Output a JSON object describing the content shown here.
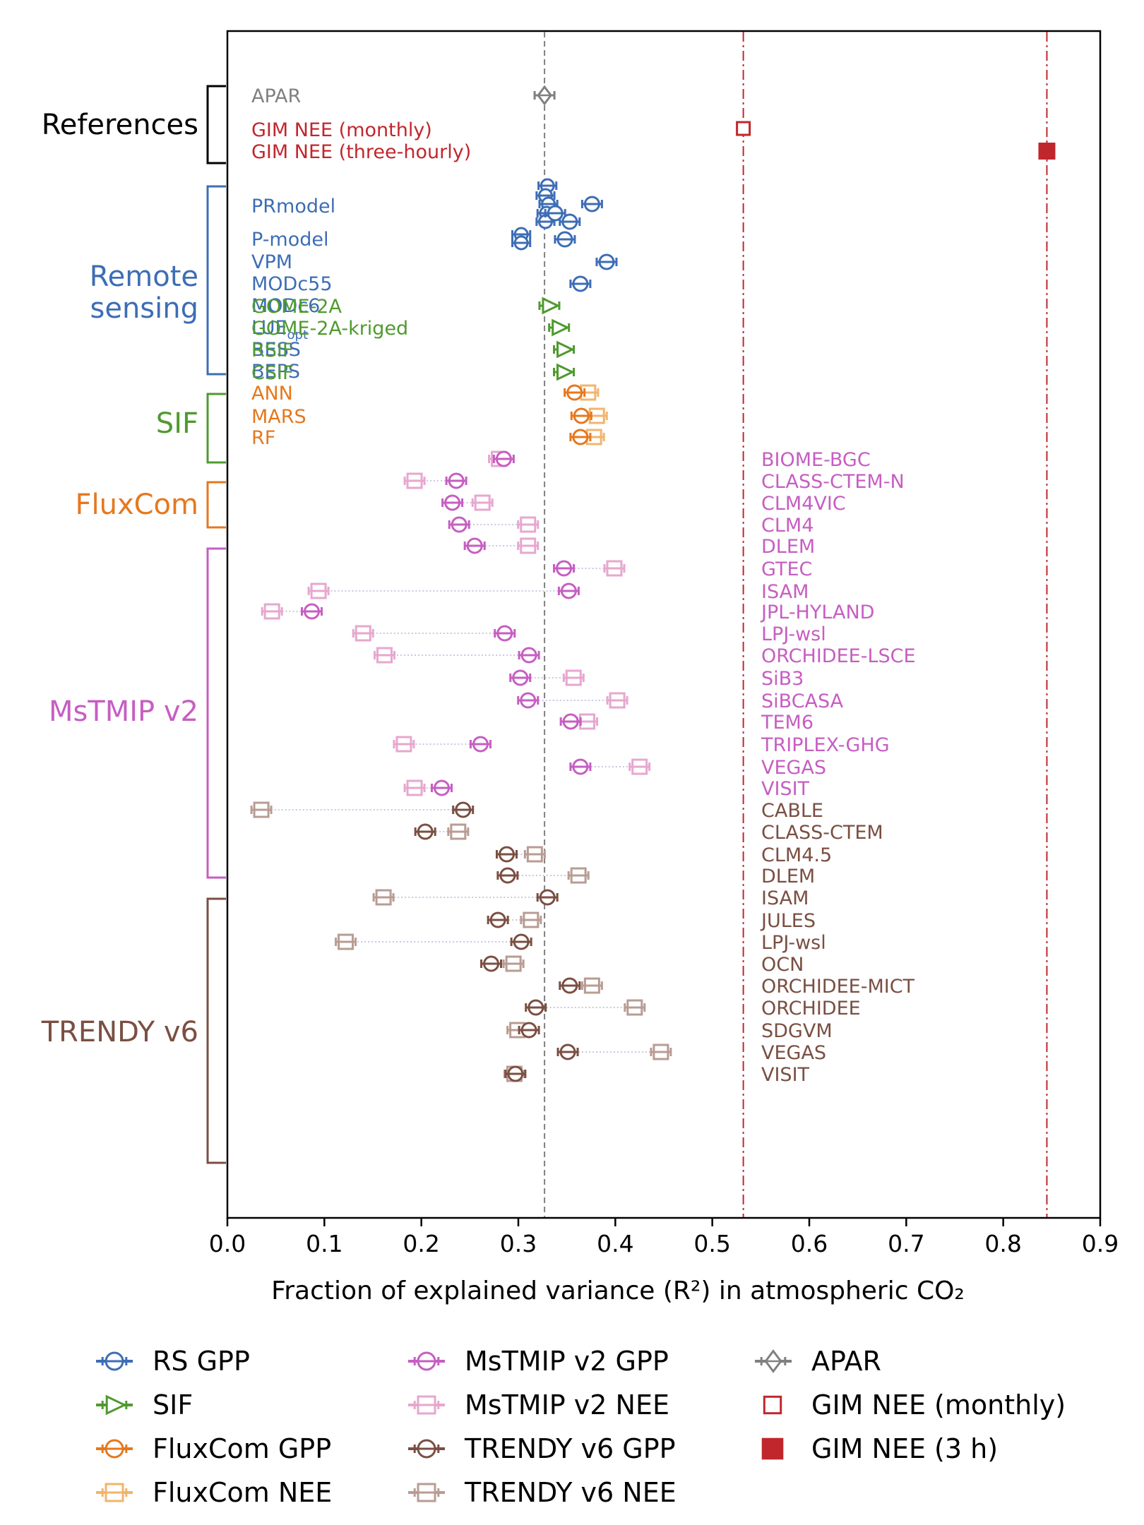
{
  "chart_data": {
    "type": "scatter",
    "xlabel": "Fraction of explained variance (R²) in atmospheric CO₂",
    "xlim": [
      0,
      0.9
    ],
    "xticks": [
      "0.0",
      "0.1",
      "0.2",
      "0.3",
      "0.4",
      "0.5",
      "0.6",
      "0.7",
      "0.8",
      "0.9"
    ],
    "colors": {
      "rs": "#3d6db5",
      "sif": "#4f9a2f",
      "fluxcom_gpp": "#e5781e",
      "fluxcom_nee": "#f2b46d",
      "mstmip_gpp": "#c65ec2",
      "mstmip_nee": "#e7a7cf",
      "trendy_gpp": "#7a4f42",
      "trendy_nee": "#b89c93",
      "apar": "#808080",
      "gim": "#c0272d",
      "ref": "#000000"
    },
    "groups": [
      {
        "label_lines": [
          "References"
        ],
        "color_key": "ref"
      },
      {
        "label_lines": [
          "Remote",
          "sensing"
        ],
        "color_key": "rs"
      },
      {
        "label_lines": [
          "SIF"
        ],
        "color_key": "sif"
      },
      {
        "label_lines": [
          "FluxCom"
        ],
        "color_key": "fluxcom_gpp"
      },
      {
        "label_lines": [
          "MsTMIP v2"
        ],
        "color_key": "mstmip_gpp"
      },
      {
        "label_lines": [
          "TRENDY v6"
        ],
        "color_key": "trendy_gpp"
      }
    ],
    "reference_lines": [
      {
        "x": 0.327,
        "style": "gray-dashed"
      },
      {
        "x": 0.532,
        "style": "red-dashdot"
      },
      {
        "x": 0.845,
        "style": "red-dashdot"
      }
    ],
    "rows": [
      {
        "label": "APAR",
        "side": "left",
        "color_key": "apar",
        "marker": "diamond",
        "x": 0.327
      },
      {
        "label": "GIM NEE (monthly)",
        "side": "left",
        "color_key": "gim",
        "marker": "open-square",
        "x": 0.532
      },
      {
        "label": "GIM NEE (three-hourly)",
        "side": "left",
        "color_key": "gim",
        "marker": "filled-square",
        "x": 0.845
      },
      {
        "label": "PRmodel",
        "side": "left",
        "color_key": "rs",
        "marker": "circle",
        "x": 0.33,
        "extra_points": [
          0.33,
          0.328,
          0.331,
          0.329,
          0.328
        ]
      },
      {
        "label": "P-model",
        "side": "left",
        "color_key": "rs",
        "marker": "circle",
        "x": 0.303,
        "extra_points": [
          0.303
        ]
      },
      {
        "label": "VPM",
        "side": "left",
        "color_key": "rs",
        "marker": "circle",
        "x": 0.376
      },
      {
        "label": "MODc55",
        "side": "left",
        "color_key": "rs",
        "marker": "circle",
        "x": 0.338
      },
      {
        "label": "MODc6",
        "side": "left",
        "color_key": "rs",
        "marker": "circle",
        "x": 0.353
      },
      {
        "label": "LUE",
        "label_sub": "opt",
        "side": "left",
        "color_key": "rs",
        "marker": "circle",
        "x": 0.348
      },
      {
        "label": "BESS",
        "side": "left",
        "color_key": "rs",
        "marker": "circle",
        "x": 0.391
      },
      {
        "label": "BEPS",
        "side": "left",
        "color_key": "rs",
        "marker": "circle",
        "x": 0.364
      },
      {
        "label": "GOME-2A",
        "side": "left",
        "color_key": "sif",
        "marker": "triangle",
        "x": 0.332
      },
      {
        "label": "GOME-2A-kriged",
        "side": "left",
        "color_key": "sif",
        "marker": "triangle",
        "x": 0.342
      },
      {
        "label": "RSIF",
        "side": "left",
        "color_key": "sif",
        "marker": "triangle",
        "x": 0.347
      },
      {
        "label": "CSIF",
        "side": "left",
        "color_key": "sif",
        "marker": "triangle",
        "x": 0.347
      },
      {
        "label": "ANN",
        "side": "left",
        "color_key": "fluxcom_gpp",
        "marker": "circle",
        "x": 0.358,
        "nee": 0.372,
        "nee_color_key": "fluxcom_nee"
      },
      {
        "label": "MARS",
        "side": "left",
        "color_key": "fluxcom_gpp",
        "marker": "circle",
        "x": 0.365,
        "nee": 0.381,
        "nee_color_key": "fluxcom_nee"
      },
      {
        "label": "RF",
        "side": "left",
        "color_key": "fluxcom_gpp",
        "marker": "circle",
        "x": 0.364,
        "nee": 0.378,
        "nee_color_key": "fluxcom_nee"
      },
      {
        "label": "BIOME-BGC",
        "side": "right",
        "color_key": "mstmip_gpp",
        "marker": "circle",
        "x": 0.285,
        "nee": 0.28,
        "nee_color_key": "mstmip_nee"
      },
      {
        "label": "CLASS-CTEM-N",
        "side": "right",
        "color_key": "mstmip_gpp",
        "marker": "circle",
        "x": 0.236,
        "nee": 0.193,
        "nee_color_key": "mstmip_nee"
      },
      {
        "label": "CLM4VIC",
        "side": "right",
        "color_key": "mstmip_gpp",
        "marker": "circle",
        "x": 0.232,
        "nee": 0.263,
        "nee_color_key": "mstmip_nee"
      },
      {
        "label": "CLM4",
        "side": "right",
        "color_key": "mstmip_gpp",
        "marker": "circle",
        "x": 0.239,
        "nee": 0.31,
        "nee_color_key": "mstmip_nee"
      },
      {
        "label": "DLEM",
        "side": "right",
        "color_key": "mstmip_gpp",
        "marker": "circle",
        "x": 0.255,
        "nee": 0.31,
        "nee_color_key": "mstmip_nee"
      },
      {
        "label": "GTEC",
        "side": "right",
        "color_key": "mstmip_gpp",
        "marker": "circle",
        "x": 0.347,
        "nee": 0.399,
        "nee_color_key": "mstmip_nee"
      },
      {
        "label": "ISAM",
        "side": "right",
        "color_key": "mstmip_gpp",
        "marker": "circle",
        "x": 0.352,
        "nee": 0.094,
        "nee_color_key": "mstmip_nee"
      },
      {
        "label": "JPL-HYLAND",
        "side": "right",
        "color_key": "mstmip_gpp",
        "marker": "circle",
        "x": 0.087,
        "nee": 0.046,
        "nee_color_key": "mstmip_nee"
      },
      {
        "label": "LPJ-wsl",
        "side": "right",
        "color_key": "mstmip_gpp",
        "marker": "circle",
        "x": 0.286,
        "nee": 0.14,
        "nee_color_key": "mstmip_nee"
      },
      {
        "label": "ORCHIDEE-LSCE",
        "side": "right",
        "color_key": "mstmip_gpp",
        "marker": "circle",
        "x": 0.311,
        "nee": 0.162,
        "nee_color_key": "mstmip_nee"
      },
      {
        "label": "SiB3",
        "side": "right",
        "color_key": "mstmip_gpp",
        "marker": "circle",
        "x": 0.302,
        "nee": 0.357,
        "nee_color_key": "mstmip_nee"
      },
      {
        "label": "SiBCASA",
        "side": "right",
        "color_key": "mstmip_gpp",
        "marker": "circle",
        "x": 0.31,
        "nee": 0.402,
        "nee_color_key": "mstmip_nee"
      },
      {
        "label": "TEM6",
        "side": "right",
        "color_key": "mstmip_gpp",
        "marker": "circle",
        "x": 0.354,
        "nee": 0.371,
        "nee_color_key": "mstmip_nee"
      },
      {
        "label": "TRIPLEX-GHG",
        "side": "right",
        "color_key": "mstmip_gpp",
        "marker": "circle",
        "x": 0.261,
        "nee": 0.182,
        "nee_color_key": "mstmip_nee"
      },
      {
        "label": "VEGAS",
        "side": "right",
        "color_key": "mstmip_gpp",
        "marker": "circle",
        "x": 0.364,
        "nee": 0.425,
        "nee_color_key": "mstmip_nee"
      },
      {
        "label": "VISIT",
        "side": "right",
        "color_key": "mstmip_gpp",
        "marker": "circle",
        "x": 0.221,
        "nee": 0.193,
        "nee_color_key": "mstmip_nee"
      },
      {
        "label": "CABLE",
        "side": "right",
        "color_key": "trendy_gpp",
        "marker": "circle",
        "x": 0.243,
        "nee": 0.035,
        "nee_color_key": "trendy_nee"
      },
      {
        "label": "CLASS-CTEM",
        "side": "right",
        "color_key": "trendy_gpp",
        "marker": "circle",
        "x": 0.204,
        "nee": 0.238,
        "nee_color_key": "trendy_nee"
      },
      {
        "label": "CLM4.5",
        "side": "right",
        "color_key": "trendy_gpp",
        "marker": "circle",
        "x": 0.288,
        "nee": 0.317,
        "nee_color_key": "trendy_nee"
      },
      {
        "label": "DLEM",
        "side": "right",
        "color_key": "trendy_gpp",
        "marker": "circle",
        "x": 0.289,
        "nee": 0.362,
        "nee_color_key": "trendy_nee"
      },
      {
        "label": "ISAM",
        "side": "right",
        "color_key": "trendy_gpp",
        "marker": "circle",
        "x": 0.33,
        "nee": 0.161,
        "nee_color_key": "trendy_nee"
      },
      {
        "label": "JULES",
        "side": "right",
        "color_key": "trendy_gpp",
        "marker": "circle",
        "x": 0.279,
        "nee": 0.313,
        "nee_color_key": "trendy_nee"
      },
      {
        "label": "LPJ-wsl",
        "side": "right",
        "color_key": "trendy_gpp",
        "marker": "circle",
        "x": 0.303,
        "nee": 0.122,
        "nee_color_key": "trendy_nee"
      },
      {
        "label": "OCN",
        "side": "right",
        "color_key": "trendy_gpp",
        "marker": "circle",
        "x": 0.272,
        "nee": 0.295,
        "nee_color_key": "trendy_nee"
      },
      {
        "label": "ORCHIDEE-MICT",
        "side": "right",
        "color_key": "trendy_gpp",
        "marker": "circle",
        "x": 0.353,
        "nee": 0.376,
        "nee_color_key": "trendy_nee"
      },
      {
        "label": "ORCHIDEE",
        "side": "right",
        "color_key": "trendy_gpp",
        "marker": "circle",
        "x": 0.318,
        "nee": 0.42,
        "nee_color_key": "trendy_nee"
      },
      {
        "label": "SDGVM",
        "side": "right",
        "color_key": "trendy_gpp",
        "marker": "circle",
        "x": 0.311,
        "nee": 0.299,
        "nee_color_key": "trendy_nee"
      },
      {
        "label": "VEGAS",
        "side": "right",
        "color_key": "trendy_gpp",
        "marker": "circle",
        "x": 0.351,
        "nee": 0.447,
        "nee_color_key": "trendy_nee"
      },
      {
        "label": "VISIT",
        "side": "right",
        "color_key": "trendy_gpp",
        "marker": "circle",
        "x": 0.297,
        "nee": 0.296,
        "nee_color_key": "trendy_nee"
      }
    ],
    "legend": [
      {
        "label": "RS GPP",
        "color_key": "rs",
        "marker": "circle"
      },
      {
        "label": "SIF",
        "color_key": "sif",
        "marker": "triangle"
      },
      {
        "label": "FluxCom GPP",
        "color_key": "fluxcom_gpp",
        "marker": "circle"
      },
      {
        "label": "FluxCom NEE",
        "color_key": "fluxcom_nee",
        "marker": "square"
      },
      {
        "label": "MsTMIP v2 GPP",
        "color_key": "mstmip_gpp",
        "marker": "circle"
      },
      {
        "label": "MsTMIP v2 NEE",
        "color_key": "mstmip_nee",
        "marker": "square"
      },
      {
        "label": "TRENDY v6 GPP",
        "color_key": "trendy_gpp",
        "marker": "circle"
      },
      {
        "label": "TRENDY v6 NEE",
        "color_key": "trendy_nee",
        "marker": "square"
      },
      {
        "label": "APAR",
        "color_key": "apar",
        "marker": "diamond"
      },
      {
        "label": "GIM NEE (monthly)",
        "color_key": "gim",
        "marker": "open-square"
      },
      {
        "label": "GIM NEE (3 h)",
        "color_key": "gim",
        "marker": "filled-square"
      }
    ]
  }
}
